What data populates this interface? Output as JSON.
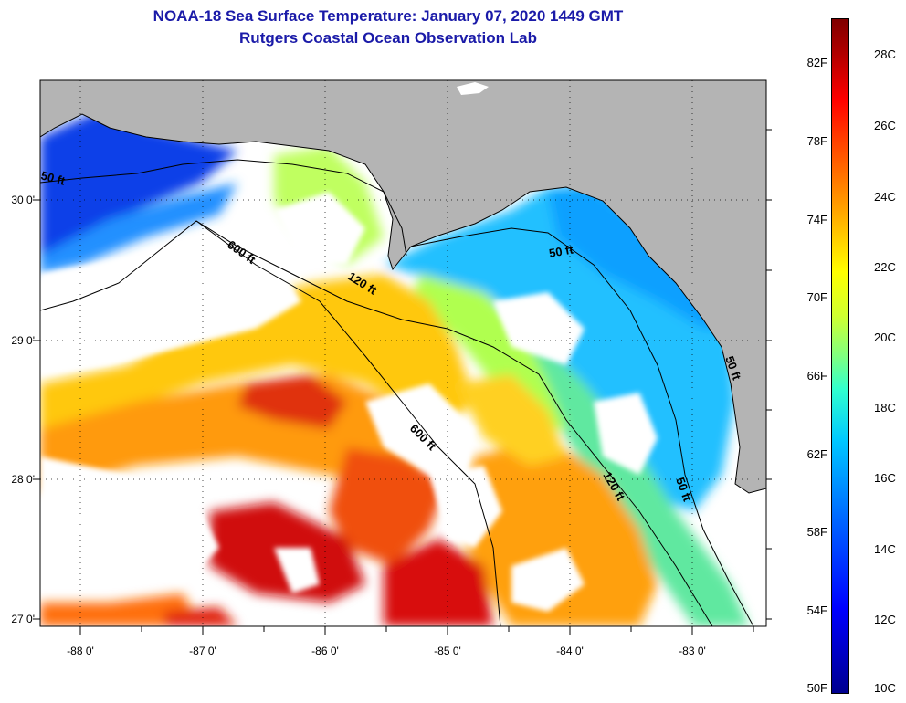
{
  "title": {
    "line1": "NOAA-18 Sea Surface Temperature:  January 07, 2020 1449 GMT",
    "line2": "Rutgers Coastal Ocean Observation Lab"
  },
  "map": {
    "latitude_labels": [
      "30 0'",
      "29 0'",
      "28 0'",
      "27 0'"
    ],
    "longitude_labels": [
      "-88 0'",
      "-87 0'",
      "-86 0'",
      "-85 0'",
      "-84 0'",
      "-83 0'"
    ],
    "contour_labels": {
      "c50_west": "50 ft",
      "c600_north": "600 ft",
      "c120_north": "120 ft",
      "c50_east": "50 ft",
      "c600_south": "600 ft",
      "c120_south": "120 ft",
      "c50_south": "50 ft",
      "c50_coast": "50 ft"
    },
    "colors": {
      "land": "#b4b4b4",
      "cloud": "#ffffff",
      "warm": "#e01010",
      "orange": "#ff9a10",
      "cool": "#20c0ff",
      "cold": "#1030e0"
    }
  },
  "colorbar": {
    "fahrenheit": [
      "82F",
      "78F",
      "74F",
      "70F",
      "66F",
      "62F",
      "58F",
      "54F",
      "50F"
    ],
    "celsius": [
      "28C",
      "26C",
      "24C",
      "22C",
      "20C",
      "18C",
      "16C",
      "14C",
      "12C",
      "10C"
    ]
  }
}
